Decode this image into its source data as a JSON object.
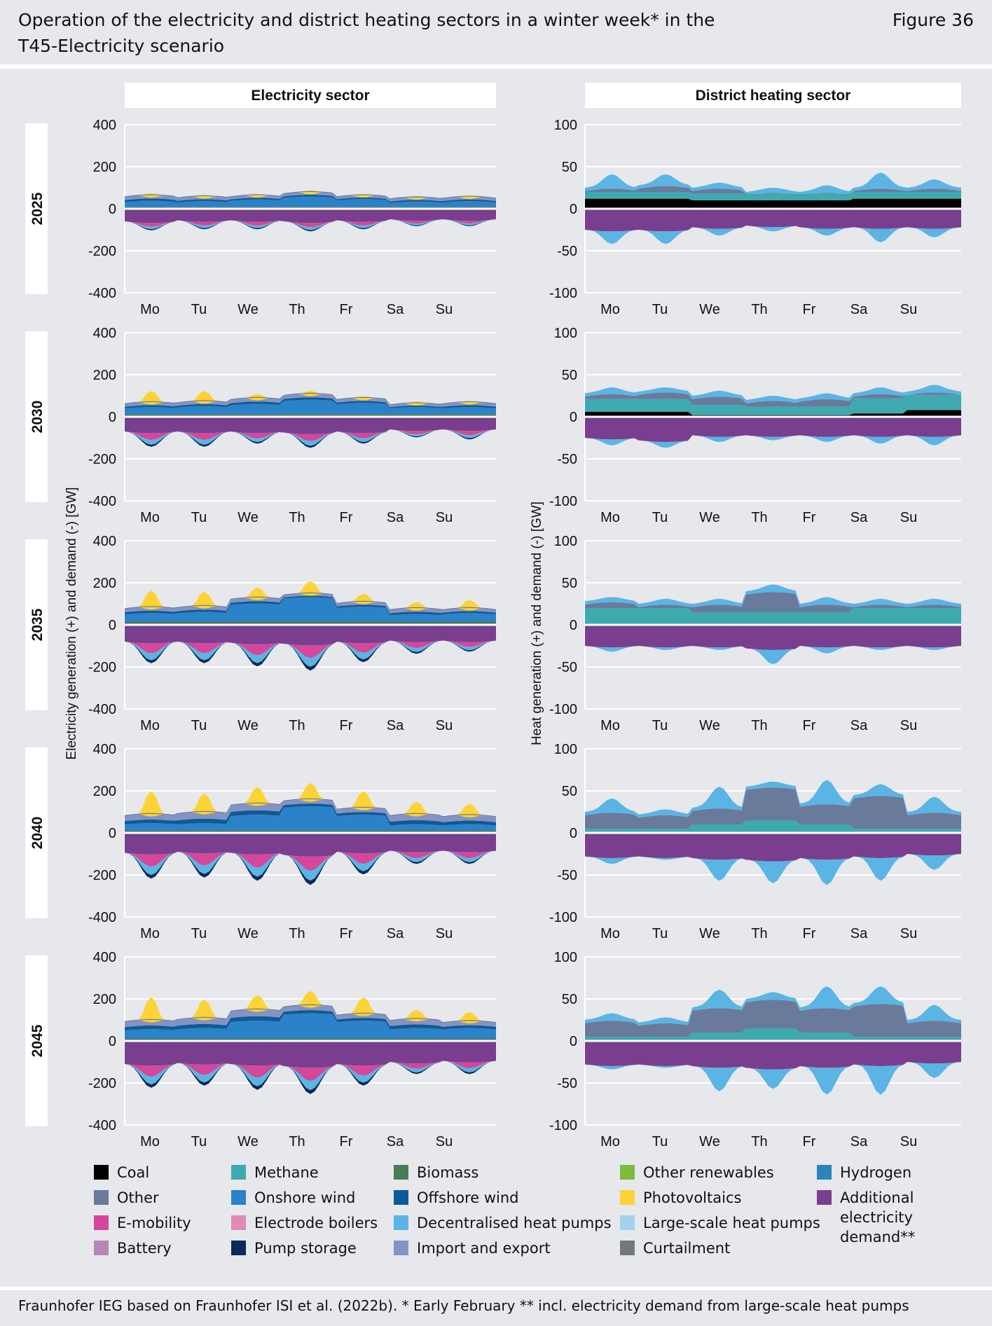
{
  "header": {
    "title": "Operation of the electricity and district heating sectors in a winter week* in the T45-Electricity scenario",
    "figure_label": "Figure 36"
  },
  "footer": {
    "source": "Fraunhofer IEG based on Fraunhofer ISI et al. (2022b). * Early February ** incl. electricity demand from large-scale heat pumps"
  },
  "chart_data": {
    "type": "area",
    "layout": "small-multiples",
    "columns": [
      "Electricity sector",
      "District heating sector"
    ],
    "years": [
      "2025",
      "2030",
      "2035",
      "2040",
      "2045"
    ],
    "days": [
      "Mo",
      "Tu",
      "We",
      "Th",
      "Fr",
      "Sa",
      "Su"
    ],
    "axes": {
      "electricity": {
        "ylabel": "Electricity generation (+) and demand (-) [GW]",
        "ylim": [
          -400,
          400
        ],
        "ticks": [
          400,
          200,
          0,
          -200,
          -400
        ]
      },
      "heat": {
        "ylabel": "Heat generation (+) and demand (-) [GW]",
        "ylim": [
          -100,
          100
        ],
        "ticks": [
          100,
          50,
          0,
          -50,
          -100
        ]
      }
    },
    "grid": true,
    "x_resolution": "daily (peak and trough approximations)",
    "legend": [
      {
        "name": "Coal",
        "color": "#000000"
      },
      {
        "name": "Other",
        "color": "#6a7a9b"
      },
      {
        "name": "E-mobility",
        "color": "#d4479a"
      },
      {
        "name": "Battery",
        "color": "#b487b9"
      },
      {
        "name": "Methane",
        "color": "#3fa9b0"
      },
      {
        "name": "Onshore wind",
        "color": "#2a82c8"
      },
      {
        "name": "Electrode boilers",
        "color": "#e08ab8"
      },
      {
        "name": "Pump storage",
        "color": "#0b2a55"
      },
      {
        "name": "Biomass",
        "color": "#4a7a56"
      },
      {
        "name": "Offshore wind",
        "color": "#0f5a96"
      },
      {
        "name": "Decentralised heat pumps",
        "color": "#5ab4e4"
      },
      {
        "name": "Import and export",
        "color": "#8592c4"
      },
      {
        "name": "Other renewables",
        "color": "#7dbb3b"
      },
      {
        "name": "Photovoltaics",
        "color": "#fcd335"
      },
      {
        "name": "Large-scale heat pumps",
        "color": "#a4d2ee"
      },
      {
        "name": "Curtailment",
        "color": "#747780"
      },
      {
        "name": "Hydrogen",
        "color": "#2a86b8"
      },
      {
        "name": "Additional\nelectricity demand**",
        "color": "#7a3e8e"
      }
    ],
    "panels": {
      "electricity": [
        {
          "year": "2025",
          "positive": {
            "base": [
              8,
              8,
              8,
              8,
              8,
              8,
              8
            ],
            "wind": [
              32,
              30,
              38,
              52,
              40,
              28,
              30
            ],
            "top": [
              55,
              50,
              55,
              70,
              55,
              45,
              48
            ],
            "pv_peak": [
              75,
              65,
              70,
              90,
              70,
              55,
              60
            ]
          },
          "negative": {
            "demand": [
              -60,
              -55,
              -55,
              -60,
              -55,
              -50,
              -50
            ],
            "peak": [
              -95,
              -90,
              -90,
              -100,
              -90,
              -75,
              -75
            ]
          }
        },
        {
          "year": "2030",
          "positive": {
            "base": [
              12,
              12,
              12,
              12,
              12,
              12,
              12
            ],
            "wind": [
              40,
              45,
              55,
              75,
              60,
              40,
              40
            ],
            "top": [
              60,
              65,
              80,
              100,
              80,
              55,
              60
            ],
            "pv_peak": [
              125,
              125,
              110,
              125,
              100,
              75,
              75
            ]
          },
          "negative": {
            "demand": [
              -70,
              -70,
              -70,
              -75,
              -70,
              -60,
              -60
            ],
            "peak": [
              -135,
              -135,
              -120,
              -140,
              -120,
              -90,
              -100
            ]
          }
        },
        {
          "year": "2035",
          "positive": {
            "base": [
              15,
              15,
              15,
              15,
              15,
              15,
              15
            ],
            "wind": [
              50,
              55,
              95,
              125,
              80,
              45,
              50
            ],
            "top": [
              75,
              80,
              120,
              140,
              100,
              70,
              70
            ],
            "pv_peak": [
              165,
              160,
              180,
              210,
              150,
              110,
              120
            ]
          },
          "negative": {
            "demand": [
              -80,
              -80,
              -85,
              -90,
              -80,
              -75,
              -75
            ],
            "peak": [
              -175,
              -175,
              -190,
              -210,
              -170,
              -130,
              -120
            ]
          }
        },
        {
          "year": "2040",
          "positive": {
            "base": [
              10,
              10,
              10,
              10,
              10,
              10,
              10
            ],
            "wind": [
              40,
              40,
              80,
              120,
              80,
              35,
              35
            ],
            "top": [
              80,
              90,
              130,
              150,
              110,
              80,
              75
            ],
            "pv_peak": [
              200,
              190,
              220,
              240,
              200,
              150,
              140
            ]
          },
          "negative": {
            "demand": [
              -95,
              -90,
              -95,
              -105,
              -90,
              -85,
              -85
            ],
            "peak": [
              -210,
              -205,
              -220,
              -240,
              -190,
              -140,
              -140
            ]
          }
        },
        {
          "year": "2045",
          "positive": {
            "base": [
              10,
              10,
              10,
              10,
              10,
              10,
              10
            ],
            "wind": [
              50,
              55,
              90,
              125,
              90,
              55,
              55
            ],
            "top": [
              90,
              100,
              140,
              160,
              120,
              95,
              85
            ],
            "pv_peak": [
              210,
              200,
              220,
              240,
              210,
              150,
              140
            ]
          },
          "negative": {
            "demand": [
              -110,
              -105,
              -110,
              -120,
              -110,
              -100,
              -95
            ],
            "peak": [
              -215,
              -205,
              -225,
              -245,
              -205,
              -150,
              -150
            ]
          }
        }
      ],
      "heat": [
        {
          "year": "2025",
          "positive": {
            "coal": [
              12,
              12,
              10,
              10,
              10,
              12,
              12
            ],
            "methane": [
              8,
              8,
              8,
              8,
              8,
              8,
              8
            ],
            "top": [
              25,
              28,
              25,
              20,
              20,
              25,
              25
            ],
            "peak": [
              38,
              38,
              28,
              22,
              25,
              40,
              32
            ]
          },
          "negative": {
            "demand": [
              -25,
              -25,
              -22,
              -20,
              -22,
              -22,
              -22
            ],
            "peak": [
              -40,
              -40,
              -30,
              -25,
              -30,
              -38,
              -32
            ]
          }
        },
        {
          "year": "2030",
          "positive": {
            "coal": [
              6,
              6,
              2,
              2,
              2,
              4,
              8
            ],
            "methane": [
              15,
              15,
              12,
              10,
              10,
              18,
              18
            ],
            "top": [
              28,
              30,
              25,
              20,
              22,
              28,
              30
            ],
            "peak": [
              32,
              32,
              28,
              22,
              25,
              32,
              35
            ]
          },
          "negative": {
            "demand": [
              -25,
              -28,
              -22,
              -22,
              -22,
              -22,
              -22
            ],
            "peak": [
              -32,
              -35,
              -28,
              -26,
              -28,
              -30,
              -32
            ]
          }
        },
        {
          "year": "2035",
          "positive": {
            "coal": [
              0,
              0,
              0,
              0,
              0,
              0,
              0
            ],
            "methane": [
              20,
              20,
              15,
              15,
              15,
              20,
              20
            ],
            "top": [
              28,
              25,
              25,
              40,
              25,
              25,
              25
            ],
            "peak": [
              30,
              28,
              28,
              45,
              30,
              28,
              28
            ]
          },
          "negative": {
            "demand": [
              -25,
              -25,
              -25,
              -28,
              -25,
              -25,
              -25
            ],
            "peak": [
              -30,
              -28,
              -28,
              -45,
              -32,
              -28,
              -28
            ]
          }
        },
        {
          "year": "2040",
          "positive": {
            "coal": [
              0,
              0,
              0,
              0,
              0,
              0,
              0
            ],
            "methane": [
              5,
              5,
              10,
              15,
              10,
              5,
              5
            ],
            "top": [
              25,
              22,
              30,
              55,
              35,
              45,
              25
            ],
            "peak": [
              38,
              25,
              52,
              58,
              60,
              55,
              40
            ]
          },
          "negative": {
            "demand": [
              -28,
              -28,
              -30,
              -32,
              -30,
              -28,
              -25
            ],
            "peak": [
              -35,
              -30,
              -55,
              -58,
              -60,
              -55,
              -42
            ]
          }
        },
        {
          "year": "2045",
          "positive": {
            "coal": [
              0,
              0,
              0,
              0,
              0,
              0,
              0
            ],
            "methane": [
              5,
              5,
              10,
              15,
              10,
              5,
              5
            ],
            "top": [
              25,
              22,
              40,
              50,
              40,
              45,
              25
            ],
            "peak": [
              30,
              25,
              58,
              55,
              62,
              62,
              40
            ]
          },
          "negative": {
            "demand": [
              -28,
              -28,
              -30,
              -32,
              -30,
              -28,
              -25
            ],
            "peak": [
              -32,
              -30,
              -58,
              -55,
              -62,
              -62,
              -42
            ]
          }
        }
      ]
    }
  }
}
